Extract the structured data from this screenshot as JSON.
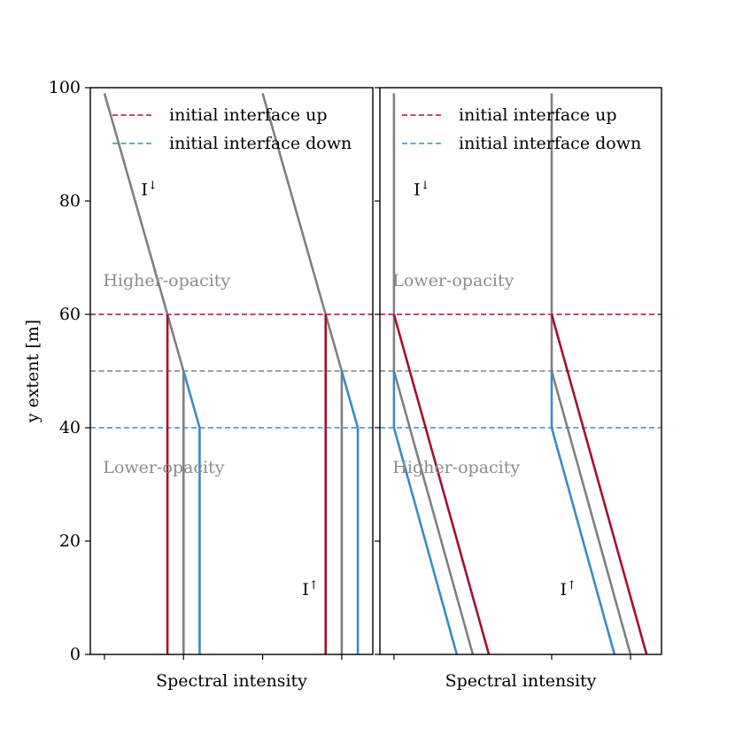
{
  "colors": {
    "up": "#a50f2d",
    "down": "#3a8cc0",
    "neutral": "#808080",
    "region_text": "#8c8c8c",
    "axis": "#000000"
  },
  "chart_data": [
    {
      "type": "line",
      "panel": "left",
      "xlabel": "Spectral intensity",
      "ylabel": "y extent [m]",
      "ylim": [
        0,
        100
      ],
      "yticks": [
        "0",
        "20",
        "40",
        "60",
        "80",
        "100"
      ],
      "xlim": [
        0,
        100
      ],
      "x_tick_positions": [
        5,
        33,
        61,
        89
      ],
      "legend": {
        "placement": "top-right",
        "entries": [
          {
            "label": "initial interface up",
            "color_key": "up",
            "style": "dashed"
          },
          {
            "label": "initial interface down",
            "color_key": "down",
            "style": "dashed"
          }
        ]
      },
      "hlines": [
        {
          "y": 60,
          "color_key": "up"
        },
        {
          "y": 50,
          "color_key": "neutral"
        },
        {
          "y": 40,
          "color_key": "down"
        }
      ],
      "series": [
        {
          "color_key": "neutral",
          "points": [
            [
              5,
              99
            ],
            [
              33,
              50
            ],
            [
              33,
              0
            ]
          ]
        },
        {
          "color_key": "up",
          "points": [
            [
              27.3,
              60
            ],
            [
              27.3,
              0
            ]
          ]
        },
        {
          "color_key": "down",
          "points": [
            [
              33,
              50
            ],
            [
              38.7,
              40
            ],
            [
              38.7,
              0
            ]
          ]
        },
        {
          "color_key": "neutral",
          "points": [
            [
              61,
              99
            ],
            [
              89,
              50
            ],
            [
              89,
              0
            ]
          ]
        },
        {
          "color_key": "up",
          "points": [
            [
              83.3,
              60
            ],
            [
              83.3,
              0
            ]
          ]
        },
        {
          "color_key": "down",
          "points": [
            [
              89,
              50
            ],
            [
              94.7,
              40
            ],
            [
              94.7,
              0
            ]
          ]
        }
      ],
      "annotations": [
        {
          "base": "I",
          "arrow": "↓",
          "x": 18,
          "y": 81
        },
        {
          "base": "I",
          "arrow": "↑",
          "x": 75,
          "y": 10.5
        }
      ],
      "region_labels": [
        {
          "text": "Higher-opacity",
          "x": 4.5,
          "y": 65
        },
        {
          "text": "Lower-opacity",
          "x": 4.5,
          "y": 32
        }
      ]
    },
    {
      "type": "line",
      "panel": "right",
      "xlabel": "Spectral intensity",
      "ylabel": "",
      "ylim": [
        0,
        100
      ],
      "xlim": [
        0,
        100
      ],
      "x_tick_positions": [
        5,
        61,
        89
      ],
      "legend": {
        "placement": "top-right",
        "entries": [
          {
            "label": "initial interface up",
            "color_key": "up",
            "style": "dashed"
          },
          {
            "label": "initial interface down",
            "color_key": "down",
            "style": "dashed"
          }
        ]
      },
      "hlines": [
        {
          "y": 60,
          "color_key": "up"
        },
        {
          "y": 50,
          "color_key": "neutral"
        },
        {
          "y": 40,
          "color_key": "down"
        }
      ],
      "series": [
        {
          "color_key": "neutral",
          "points": [
            [
              5,
              99
            ],
            [
              5,
              50
            ],
            [
              33,
              0
            ]
          ]
        },
        {
          "color_key": "up",
          "points": [
            [
              5,
              60
            ],
            [
              38.7,
              0
            ]
          ]
        },
        {
          "color_key": "down",
          "points": [
            [
              5,
              50
            ],
            [
              5,
              40
            ],
            [
              27.3,
              0
            ]
          ]
        },
        {
          "color_key": "neutral",
          "points": [
            [
              61,
              99
            ],
            [
              61,
              50
            ],
            [
              89,
              0
            ]
          ]
        },
        {
          "color_key": "up",
          "points": [
            [
              61,
              60
            ],
            [
              94.7,
              0
            ]
          ]
        },
        {
          "color_key": "down",
          "points": [
            [
              61,
              50
            ],
            [
              61,
              40
            ],
            [
              83.3,
              0
            ]
          ]
        }
      ],
      "annotations": [
        {
          "base": "I",
          "arrow": "↓",
          "x": 12,
          "y": 81
        },
        {
          "base": "I",
          "arrow": "↑",
          "x": 64,
          "y": 10.5
        }
      ],
      "region_labels": [
        {
          "text": "Lower-opacity",
          "x": 4.5,
          "y": 65
        },
        {
          "text": "Higher-opacity",
          "x": 4.5,
          "y": 32
        }
      ]
    }
  ]
}
